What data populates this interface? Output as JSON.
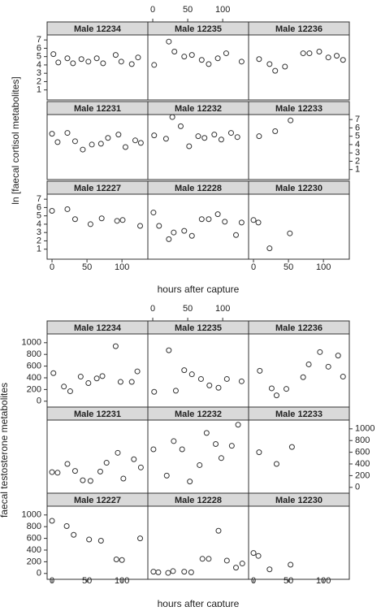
{
  "chart_data": [
    {
      "type": "scatter",
      "ylabel": "ln [faecal cortisol metabolites]",
      "xlabel": "hours after capture",
      "xlim": [
        -7,
        137
      ],
      "xticks": [
        0,
        50,
        100
      ],
      "ylim": [
        -0.2,
        7.6
      ],
      "yticks": [
        1,
        2,
        3,
        4,
        5,
        6,
        7
      ],
      "color": "#333333",
      "panels": [
        {
          "name": "Male 12234",
          "x": [
            2,
            9,
            22,
            30,
            42,
            52,
            64,
            73,
            91,
            99,
            114,
            123
          ],
          "values": [
            5.3,
            4.3,
            4.8,
            4.2,
            4.7,
            4.4,
            4.8,
            4.2,
            5.2,
            4.4,
            4.1,
            4.9
          ]
        },
        {
          "name": "Male 12235",
          "x": [
            2,
            23,
            31,
            45,
            56,
            70,
            80,
            93,
            105,
            127
          ],
          "values": [
            4.0,
            6.8,
            5.6,
            5.0,
            5.2,
            4.6,
            4.1,
            4.8,
            5.4,
            4.4
          ]
        },
        {
          "name": "Male 12236",
          "x": [
            8,
            23,
            31,
            45,
            71,
            80,
            94,
            107,
            119,
            128
          ],
          "values": [
            4.7,
            4.1,
            3.3,
            3.8,
            5.4,
            5.4,
            5.6,
            4.9,
            5.1,
            4.6
          ]
        },
        {
          "name": "Male 12231",
          "x": [
            0,
            8,
            22,
            33,
            44,
            57,
            70,
            80,
            95,
            105,
            119,
            127
          ],
          "values": [
            5.3,
            4.3,
            5.4,
            4.4,
            3.4,
            4.0,
            4.1,
            4.8,
            5.2,
            3.7,
            4.5,
            4.2
          ]
        },
        {
          "name": "Male 12232",
          "x": [
            2,
            19,
            28,
            40,
            52,
            65,
            74,
            88,
            98,
            112,
            121
          ],
          "values": [
            5.1,
            4.7,
            7.3,
            6.2,
            3.8,
            5.0,
            4.8,
            5.2,
            4.6,
            5.4,
            4.9
          ]
        },
        {
          "name": "Male 12233",
          "x": [
            8,
            31,
            53
          ],
          "values": [
            5.0,
            5.6,
            6.9
          ]
        },
        {
          "name": "Male 12227",
          "x": [
            0,
            22,
            33,
            55,
            71,
            93,
            101,
            126
          ],
          "values": [
            5.6,
            5.8,
            4.6,
            4.0,
            4.7,
            4.4,
            4.5,
            3.8
          ]
        },
        {
          "name": "Male 12228",
          "x": [
            1,
            9,
            23,
            30,
            45,
            56,
            70,
            80,
            93,
            103,
            119,
            127
          ],
          "values": [
            5.4,
            3.8,
            2.2,
            3.0,
            3.2,
            2.6,
            4.6,
            4.6,
            5.2,
            4.3,
            2.7,
            4.2
          ]
        },
        {
          "name": "Male 12230",
          "x": [
            0,
            7,
            23,
            52
          ],
          "values": [
            4.5,
            4.2,
            1.1,
            2.9
          ]
        }
      ]
    },
    {
      "type": "scatter",
      "ylabel": "faecal testosterone metabolites",
      "xlabel": "hours after capture",
      "xlim": [
        -7,
        137
      ],
      "xticks": [
        0,
        50,
        100
      ],
      "ylim": [
        -100,
        1150
      ],
      "yticks": [
        0,
        200,
        400,
        600,
        800,
        1000
      ],
      "color": "#333333",
      "panels": [
        {
          "name": "Male 12234",
          "x": [
            2,
            17,
            26,
            41,
            52,
            64,
            72,
            91,
            98,
            114,
            122
          ],
          "values": [
            480,
            250,
            170,
            420,
            310,
            390,
            430,
            940,
            330,
            330,
            510
          ]
        },
        {
          "name": "Male 12235",
          "x": [
            2,
            23,
            33,
            45,
            56,
            69,
            81,
            94,
            106,
            127
          ],
          "values": [
            160,
            870,
            180,
            530,
            460,
            380,
            270,
            230,
            380,
            340
          ]
        },
        {
          "name": "Male  12236",
          "x": [
            9,
            26,
            33,
            47,
            71,
            79,
            95,
            107,
            121,
            128
          ],
          "values": [
            520,
            220,
            100,
            210,
            410,
            630,
            840,
            590,
            780,
            420
          ]
        },
        {
          "name": "Male 12231",
          "x": [
            0,
            8,
            22,
            33,
            44,
            55,
            69,
            78,
            94,
            102,
            117,
            127
          ],
          "values": [
            260,
            250,
            400,
            280,
            120,
            110,
            270,
            420,
            590,
            150,
            480,
            340
          ]
        },
        {
          "name": "Male 12232",
          "x": [
            1,
            20,
            30,
            42,
            53,
            67,
            77,
            90,
            98,
            113,
            122
          ],
          "values": [
            650,
            200,
            790,
            650,
            100,
            380,
            930,
            740,
            500,
            710,
            1070
          ]
        },
        {
          "name": "Male 12233",
          "x": [
            8,
            33,
            55
          ],
          "values": [
            600,
            400,
            690
          ]
        },
        {
          "name": "Male 12227",
          "x": [
            0,
            21,
            31,
            53,
            70,
            92,
            100,
            126
          ],
          "values": [
            900,
            810,
            660,
            580,
            560,
            240,
            230,
            600
          ]
        },
        {
          "name": "Male 12228",
          "x": [
            1,
            8,
            22,
            29,
            45,
            55,
            71,
            80,
            94,
            106,
            119,
            128
          ],
          "values": [
            30,
            20,
            10,
            40,
            30,
            20,
            250,
            250,
            730,
            220,
            100,
            170
          ]
        },
        {
          "name": "Male 12230",
          "x": [
            0,
            7,
            23,
            53
          ],
          "values": [
            350,
            300,
            70,
            150
          ]
        }
      ]
    }
  ]
}
